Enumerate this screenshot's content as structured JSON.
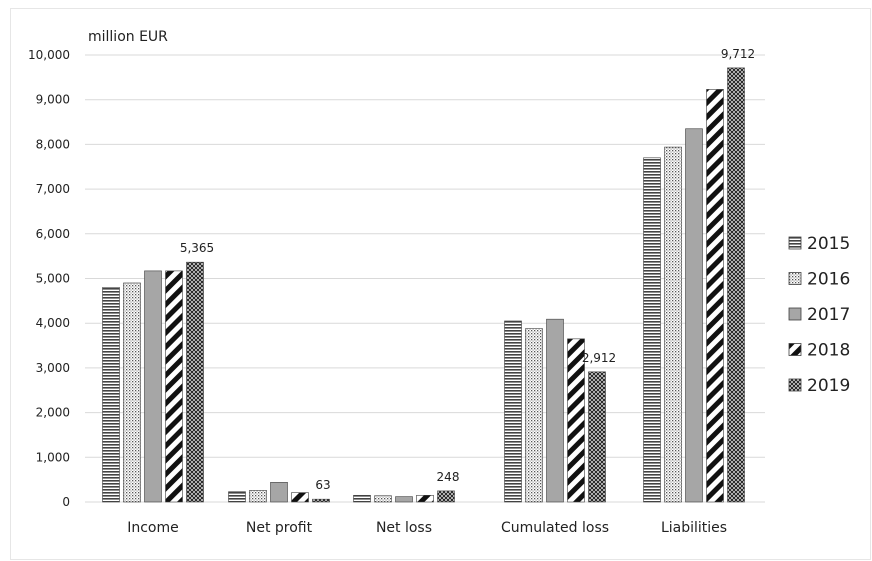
{
  "chart_data": {
    "type": "bar",
    "ylabel": "million EUR",
    "ylim": [
      0,
      10000
    ],
    "yticks": [
      "0",
      "1,000",
      "2,000",
      "3,000",
      "4,000",
      "5,000",
      "6,000",
      "7,000",
      "8,000",
      "9,000",
      "10,000"
    ],
    "categories": [
      "Income",
      "Net profit",
      "Net loss",
      "Cumulated loss",
      "Liabilities"
    ],
    "series": [
      {
        "name": "2015",
        "pattern": "hstripes",
        "values": [
          4800,
          230,
          150,
          4050,
          7700
        ]
      },
      {
        "name": "2016",
        "pattern": "dots",
        "values": [
          4900,
          260,
          140,
          3880,
          7940
        ]
      },
      {
        "name": "2017",
        "pattern": "solid-gray",
        "values": [
          5170,
          440,
          120,
          4090,
          8350
        ]
      },
      {
        "name": "2018",
        "pattern": "diagonal",
        "values": [
          5170,
          210,
          150,
          3650,
          9230
        ]
      },
      {
        "name": "2019",
        "pattern": "crosshatch",
        "values": [
          5365,
          63,
          248,
          2912,
          9712
        ]
      }
    ],
    "data_labels": [
      {
        "series": "2019",
        "category": "Income",
        "text": "5,365"
      },
      {
        "series": "2019",
        "category": "Net profit",
        "text": "63"
      },
      {
        "series": "2019",
        "category": "Net loss",
        "text": "248"
      },
      {
        "series": "2019",
        "category": "Cumulated loss",
        "text": "2,912"
      },
      {
        "series": "2019",
        "category": "Liabilities",
        "text": "9,712"
      }
    ],
    "legend_position": "right",
    "grid": true,
    "colors": {
      "grid": "#d9d9d9",
      "bar_fill": "#5a5a5a",
      "bar_stroke": "#3f3f3f",
      "solid_gray": "#a6a6a6"
    }
  }
}
